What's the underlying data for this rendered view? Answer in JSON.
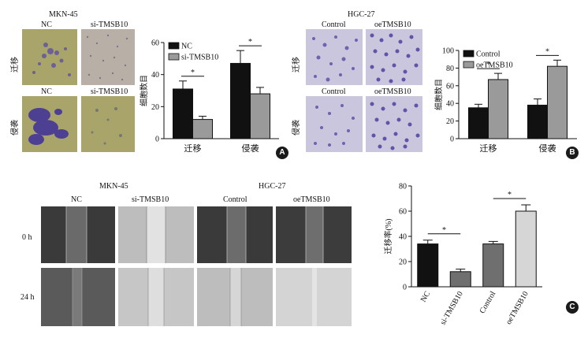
{
  "panel_a": {
    "title": "MKN-45",
    "col_labels": [
      "NC",
      "si-TMSB10"
    ],
    "sub_labels": [
      "NC",
      "si-TMSB10"
    ],
    "row_labels": [
      "迁移",
      "侵袭"
    ],
    "badge": "A"
  },
  "panel_b": {
    "title": "HGC-27",
    "col_labels": [
      "Control",
      "oeTMSB10"
    ],
    "sub_labels": [
      "Control",
      "oeTMSB10"
    ],
    "row_labels": [
      "迁移",
      "侵袭"
    ],
    "badge": "B"
  },
  "panel_c": {
    "title_left": "MKN-45",
    "title_right": "HGC-27",
    "col_labels": [
      "NC",
      "si-TMSB10",
      "Control",
      "oeTMSB10"
    ],
    "row_labels": [
      "0 h",
      "24 h"
    ],
    "badge": "C"
  },
  "colors": {
    "black": "#111111",
    "gray": "#9a9a9a",
    "dark_gray": "#6f6f6f",
    "light_gray": "#d6d6d6",
    "stain_purple": "#5a4aa8",
    "membrane_olive": "#a9a46a",
    "membrane_lilac": "#c9c6dd"
  },
  "chart_data": [
    {
      "type": "bar",
      "ylabel": "细胞数目",
      "categories": [
        "迁移",
        "侵袭"
      ],
      "series": [
        {
          "name": "NC",
          "values": [
            31,
            47
          ],
          "errors": [
            5,
            8
          ],
          "color": "#111111"
        },
        {
          "name": "si-TMSB10",
          "values": [
            12,
            28
          ],
          "errors": [
            2,
            4
          ],
          "color": "#9a9a9a"
        }
      ],
      "ylim": [
        0,
        60
      ],
      "yticks": [
        0,
        20,
        40,
        60
      ],
      "significance": [
        "*",
        "*"
      ],
      "legend_position": "top-left"
    },
    {
      "type": "bar",
      "ylabel": "细胞数目",
      "categories": [
        "迁移",
        "侵袭"
      ],
      "series": [
        {
          "name": "Control",
          "values": [
            35,
            38
          ],
          "errors": [
            4,
            7
          ],
          "color": "#111111"
        },
        {
          "name": "oeTMSB10",
          "values": [
            67,
            82
          ],
          "errors": [
            7,
            7
          ],
          "color": "#9a9a9a"
        }
      ],
      "ylim": [
        0,
        100
      ],
      "yticks": [
        0,
        20,
        40,
        60,
        80,
        100
      ],
      "significance": [
        "*",
        "*"
      ],
      "legend_position": "top-left"
    },
    {
      "type": "bar",
      "ylabel": "迁移率(%)",
      "categories": [
        "NC",
        "si-TMSB10",
        "Control",
        "oeTMSB10"
      ],
      "values": [
        34,
        12,
        34,
        60
      ],
      "errors": [
        3,
        2,
        2,
        5
      ],
      "colors": [
        "#111111",
        "#6f6f6f",
        "#6f6f6f",
        "#d6d6d6"
      ],
      "ylim": [
        0,
        80
      ],
      "yticks": [
        0,
        20,
        40,
        60,
        80
      ],
      "significance": [
        {
          "pair": [
            "NC",
            "si-TMSB10"
          ],
          "label": "*"
        },
        {
          "pair": [
            "Control",
            "oeTMSB10"
          ],
          "label": "*"
        }
      ]
    }
  ]
}
